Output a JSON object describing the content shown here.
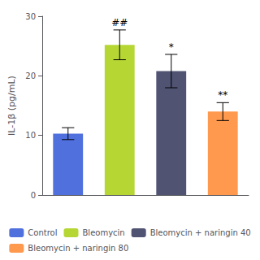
{
  "chart_data": {
    "type": "bar",
    "categories": [
      "Control",
      "Bleomycin",
      "Bleomycin + naringin 40",
      "Bleomycin + naringin 80"
    ],
    "values": [
      10.3,
      25.2,
      20.8,
      14.0
    ],
    "errors": [
      1.0,
      2.5,
      2.8,
      1.5
    ],
    "annotations": [
      "",
      "##",
      "*",
      "**"
    ],
    "ylabel": "IL-1β (pg/mL)",
    "ylim": [
      0,
      30
    ],
    "yticks": [
      0,
      10,
      20,
      30
    ],
    "grid": false,
    "legend": "bottom",
    "tick_labels": "y"
  }
}
